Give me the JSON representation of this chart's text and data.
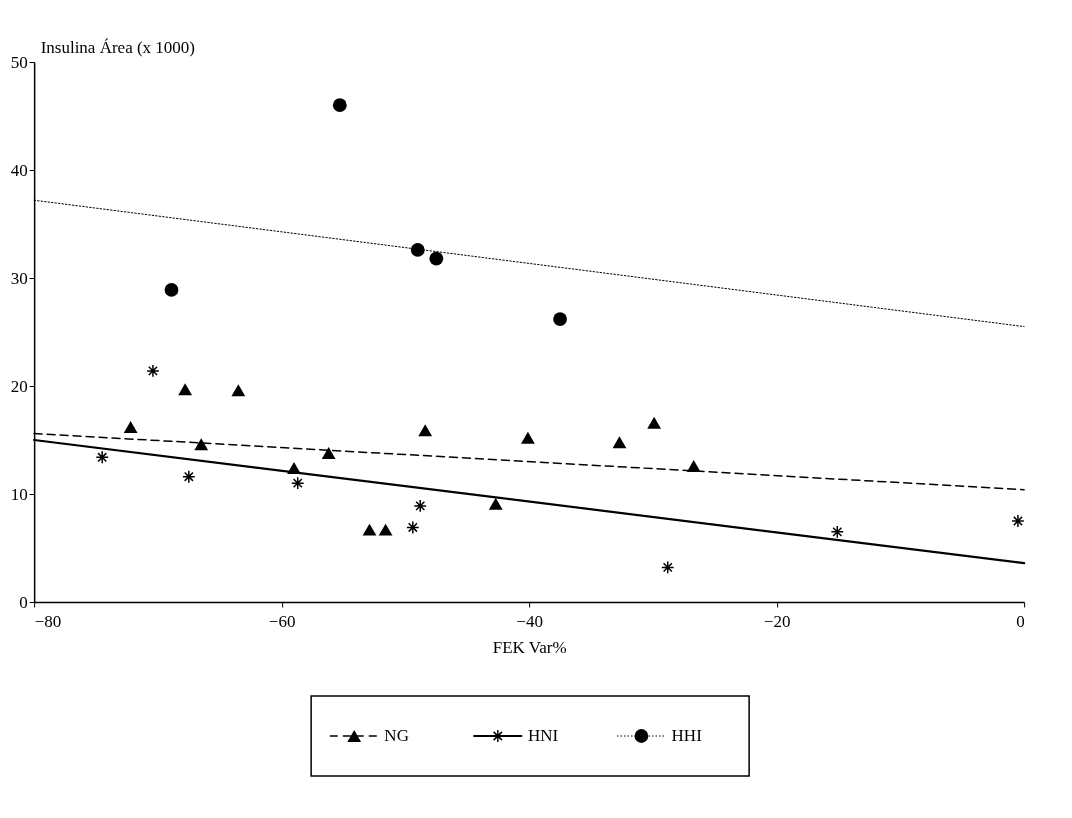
{
  "chart_data": {
    "type": "scatter",
    "xlabel": "FEK Var%",
    "ylabel": "Insulina Área (x 1000)",
    "xlim": [
      -80,
      0
    ],
    "ylim": [
      0,
      50
    ],
    "xticks": [
      {
        "value": -80,
        "label": "−80"
      },
      {
        "value": -60,
        "label": "−60"
      },
      {
        "value": -40,
        "label": "−40"
      },
      {
        "value": -20,
        "label": "−20"
      },
      0
    ],
    "yticks": [
      0,
      10,
      20,
      30,
      40,
      50
    ],
    "grid": false,
    "legend": "bottom",
    "series": [
      {
        "name": "NG",
        "marker": "triangle",
        "line_style": "dashed",
        "color": "#000000",
        "x": [
          -72.2,
          -67.8,
          -66.5,
          -63.5,
          -59,
          -56.2,
          -52.9,
          -51.6,
          -48.4,
          -42.7,
          -40.1,
          -32.7,
          -29.9,
          -26.7
        ],
        "values": [
          16.2,
          19.7,
          14.6,
          19.6,
          12.4,
          13.8,
          6.7,
          6.7,
          15.9,
          9.1,
          15.2,
          14.8,
          16.6,
          12.6
        ]
      },
      {
        "name": "HNI",
        "marker": "cross",
        "line_style": "solid",
        "color": "#000000",
        "x": [
          -74.5,
          -70.4,
          -67.5,
          -58.7,
          -49.4,
          -48.8,
          -28.8,
          -15.1,
          -0.5
        ],
        "values": [
          13.4,
          21.4,
          11.6,
          11.0,
          6.9,
          8.9,
          3.2,
          6.5,
          7.5
        ]
      },
      {
        "name": "HHI",
        "marker": "circle",
        "line_style": "dotted",
        "color": "#000000",
        "x": [
          -68.9,
          -55.3,
          -49.0,
          -47.5,
          -37.5
        ],
        "values": [
          28.9,
          46.0,
          32.6,
          31.8,
          26.2
        ]
      },
      {
        "type": "line",
        "line_style": "dashed",
        "color": "#000000",
        "x": [
          -80,
          0
        ],
        "values": [
          15.6,
          10.4
        ]
      },
      {
        "type": "line",
        "line_style": "solid",
        "color": "#000000",
        "x": [
          -80,
          0
        ],
        "values": [
          15.0,
          3.6
        ]
      },
      {
        "type": "line",
        "line_style": "dotted",
        "color": "#000000",
        "x": [
          -80,
          0
        ],
        "values": [
          37.2,
          25.5
        ]
      }
    ]
  }
}
